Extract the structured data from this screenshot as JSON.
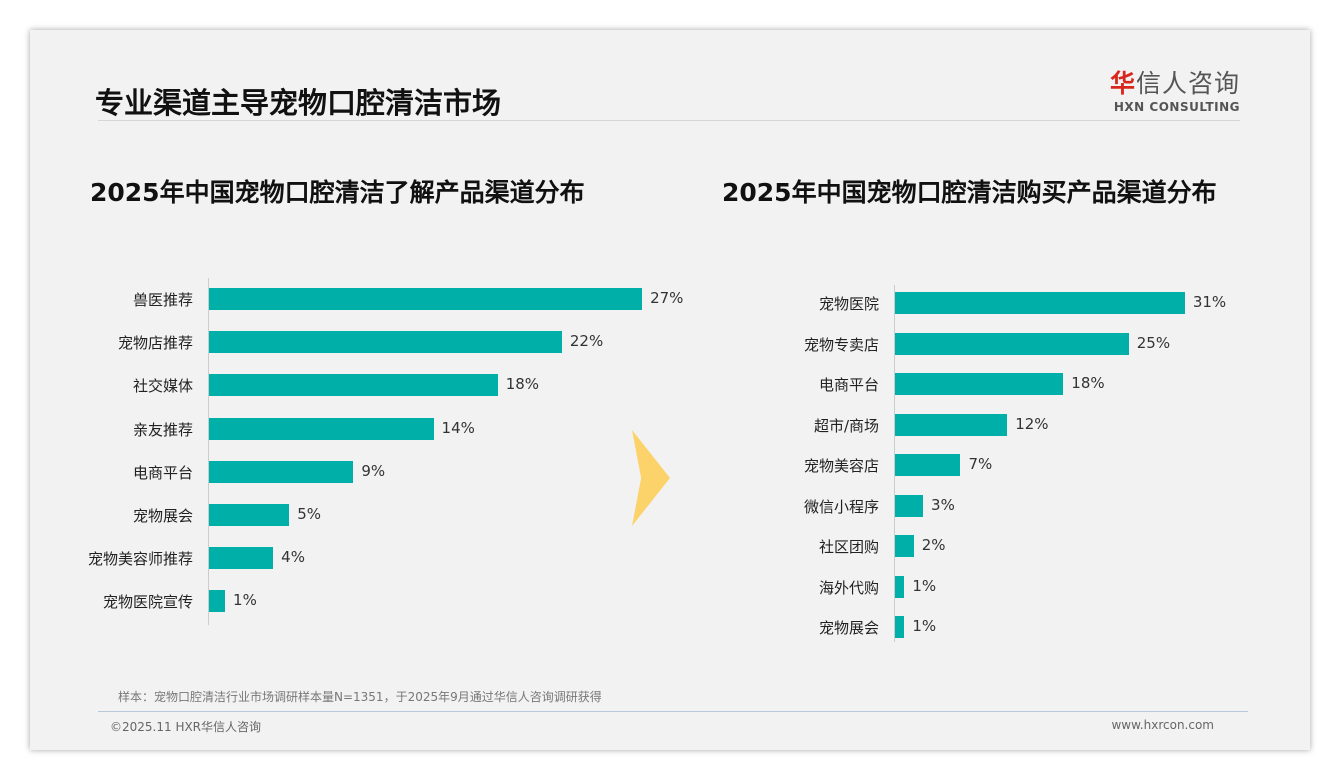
{
  "header": {
    "title": "专业渠道主导宠物口腔清洁市场",
    "logo_cn_accent": "华",
    "logo_cn_rest": "信人咨询",
    "logo_en": "HXN CONSULTING"
  },
  "chart_data": [
    {
      "type": "bar",
      "orientation": "horizontal",
      "title": "2025年中国宠物口腔清洁了解产品渠道分布",
      "categories": [
        "兽医推荐",
        "宠物店推荐",
        "社交媒体",
        "亲友推荐",
        "电商平台",
        "宠物展会",
        "宠物美容师推荐",
        "宠物医院宣传"
      ],
      "values": [
        27,
        22,
        18,
        14,
        9,
        5,
        4,
        1
      ],
      "unit": "%",
      "color": "#00b0a8"
    },
    {
      "type": "bar",
      "orientation": "horizontal",
      "title": "2025年中国宠物口腔清洁购买产品渠道分布",
      "categories": [
        "宠物医院",
        "宠物专卖店",
        "电商平台",
        "超市/商场",
        "宠物美容店",
        "微信小程序",
        "社区团购",
        "海外代购",
        "宠物展会"
      ],
      "values": [
        31,
        25,
        18,
        12,
        7,
        3,
        2,
        1,
        1
      ],
      "unit": "%",
      "color": "#00b0a8"
    }
  ],
  "footer": {
    "note": "样本：宠物口腔清洁行业市场调研样本量N=1351，于2025年9月通过华信人咨询调研获得",
    "copyright": "©2025.11 HXR华信人咨询",
    "url": "www.hxrcon.com"
  }
}
